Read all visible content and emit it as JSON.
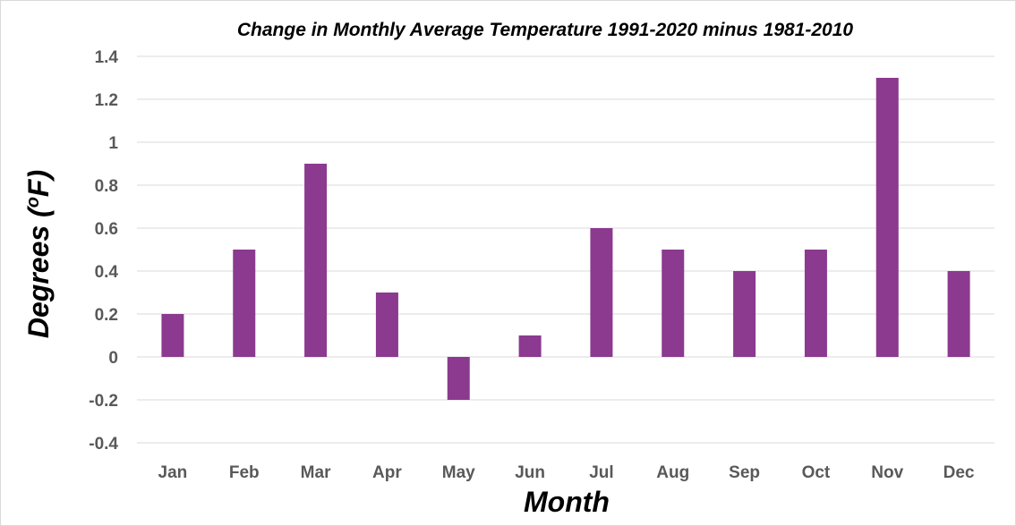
{
  "chart_data": {
    "type": "bar",
    "title": "Change in Monthly Average Temperature 1991-2020 minus 1981-2010",
    "xlabel": "Month",
    "ylabel": "Degrees (",
    "ylabel_sup": "o",
    "ylabel_unit": "F)",
    "categories": [
      "Jan",
      "Feb",
      "Mar",
      "Apr",
      "May",
      "Jun",
      "Jul",
      "Aug",
      "Sep",
      "Oct",
      "Nov",
      "Dec"
    ],
    "values": [
      0.2,
      0.5,
      0.9,
      0.3,
      -0.2,
      0.1,
      0.6,
      0.5,
      0.4,
      0.5,
      1.3,
      0.4
    ],
    "ylim": [
      -0.4,
      1.4
    ],
    "yticks": [
      -0.4,
      -0.2,
      0,
      0.2,
      0.4,
      0.6,
      0.8,
      1,
      1.2,
      1.4
    ],
    "ytick_labels": [
      "-0.4",
      "-0.2",
      "0",
      "0.2",
      "0.4",
      "0.6",
      "0.8",
      "1",
      "1.2",
      "1.4"
    ],
    "grid": true,
    "legend": "none",
    "bar_color": "#8B3A8F"
  }
}
